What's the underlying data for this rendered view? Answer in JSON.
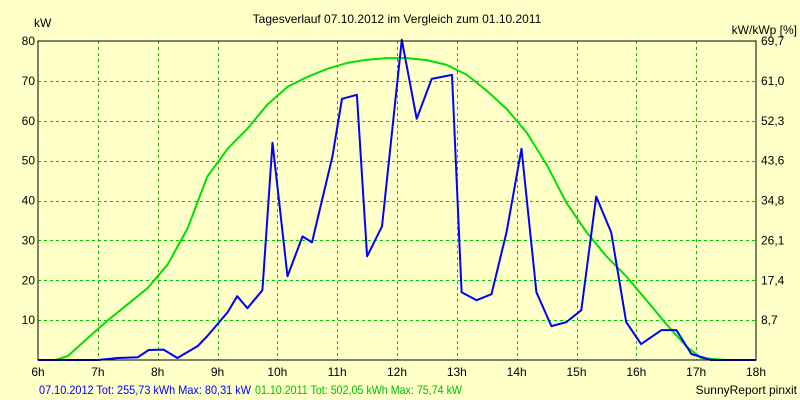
{
  "chart_data": {
    "type": "line",
    "title": "Tagesverlauf 07.10.2012 im Vergleich zum 01.10.2011",
    "ylabel_left": "kW",
    "ylabel_right": "kW/kWp [%]",
    "x_ticks": [
      "6h",
      "7h",
      "8h",
      "9h",
      "10h",
      "11h",
      "12h",
      "13h",
      "14h",
      "15h",
      "16h",
      "17h",
      "18h"
    ],
    "xlim": [
      6,
      18
    ],
    "ylim": [
      0,
      80
    ],
    "y_ticks_left": [
      "10",
      "20",
      "30",
      "40",
      "50",
      "60",
      "70",
      "80"
    ],
    "y_ticks_right": [
      "8,7",
      "17,4",
      "26,1",
      "34,8",
      "43,6",
      "52,3",
      "61,0",
      "69,7"
    ],
    "grid": true,
    "series": [
      {
        "name": "07.10.2012",
        "color": "#0000ff",
        "points": [
          [
            6.0,
            0
          ],
          [
            6.33,
            0
          ],
          [
            6.67,
            0
          ],
          [
            7.0,
            0
          ],
          [
            7.33,
            0.5
          ],
          [
            7.67,
            0.7
          ],
          [
            7.85,
            2.5
          ],
          [
            8.1,
            2.6
          ],
          [
            8.33,
            0.5
          ],
          [
            8.67,
            3.5
          ],
          [
            8.83,
            6
          ],
          [
            9.17,
            12
          ],
          [
            9.33,
            16
          ],
          [
            9.5,
            13
          ],
          [
            9.75,
            17.5
          ],
          [
            9.92,
            54.5
          ],
          [
            10.17,
            21
          ],
          [
            10.42,
            31
          ],
          [
            10.58,
            29.5
          ],
          [
            10.92,
            51
          ],
          [
            11.08,
            65.5
          ],
          [
            11.33,
            66.5
          ],
          [
            11.5,
            26
          ],
          [
            11.75,
            33.5
          ],
          [
            12.08,
            80.3
          ],
          [
            12.33,
            60.5
          ],
          [
            12.58,
            70.5
          ],
          [
            12.92,
            71.5
          ],
          [
            13.08,
            17
          ],
          [
            13.33,
            15
          ],
          [
            13.58,
            16.5
          ],
          [
            13.83,
            32
          ],
          [
            14.08,
            53
          ],
          [
            14.33,
            17
          ],
          [
            14.58,
            8.5
          ],
          [
            14.83,
            9.5
          ],
          [
            15.08,
            12.5
          ],
          [
            15.33,
            41
          ],
          [
            15.58,
            32
          ],
          [
            15.83,
            9.5
          ],
          [
            16.08,
            4
          ],
          [
            16.42,
            7.5
          ],
          [
            16.67,
            7.5
          ],
          [
            16.92,
            1.5
          ],
          [
            17.25,
            0
          ],
          [
            17.5,
            0
          ],
          [
            18.0,
            0
          ]
        ]
      },
      {
        "name": "01.10.2011",
        "color": "#00e000",
        "points": [
          [
            6.0,
            0
          ],
          [
            6.3,
            0
          ],
          [
            6.5,
            1
          ],
          [
            6.83,
            5.5
          ],
          [
            7.17,
            10
          ],
          [
            7.5,
            14
          ],
          [
            7.83,
            18
          ],
          [
            8.17,
            24
          ],
          [
            8.5,
            33
          ],
          [
            8.83,
            46
          ],
          [
            9.17,
            53
          ],
          [
            9.5,
            58
          ],
          [
            9.83,
            64
          ],
          [
            10.17,
            68.5
          ],
          [
            10.5,
            71
          ],
          [
            10.83,
            73
          ],
          [
            11.17,
            74.5
          ],
          [
            11.5,
            75.3
          ],
          [
            11.83,
            75.7
          ],
          [
            12.17,
            75.7
          ],
          [
            12.5,
            75.2
          ],
          [
            12.83,
            74
          ],
          [
            13.17,
            71.5
          ],
          [
            13.5,
            67.5
          ],
          [
            13.83,
            63
          ],
          [
            14.17,
            57
          ],
          [
            14.5,
            49
          ],
          [
            14.83,
            39.5
          ],
          [
            15.17,
            32
          ],
          [
            15.5,
            26
          ],
          [
            15.83,
            21
          ],
          [
            16.17,
            15
          ],
          [
            16.5,
            9
          ],
          [
            16.83,
            3.5
          ],
          [
            17.08,
            0.5
          ],
          [
            17.5,
            0
          ],
          [
            18.0,
            0
          ]
        ]
      }
    ],
    "footer": {
      "series1": "07.10.2012 Tot: 255,73 kWh Max: 80,31 kW",
      "series2": "01.10.2011 Tot: 502,05 kWh Max: 75,74 kW",
      "credit": "SunnyReport pinxit"
    }
  }
}
